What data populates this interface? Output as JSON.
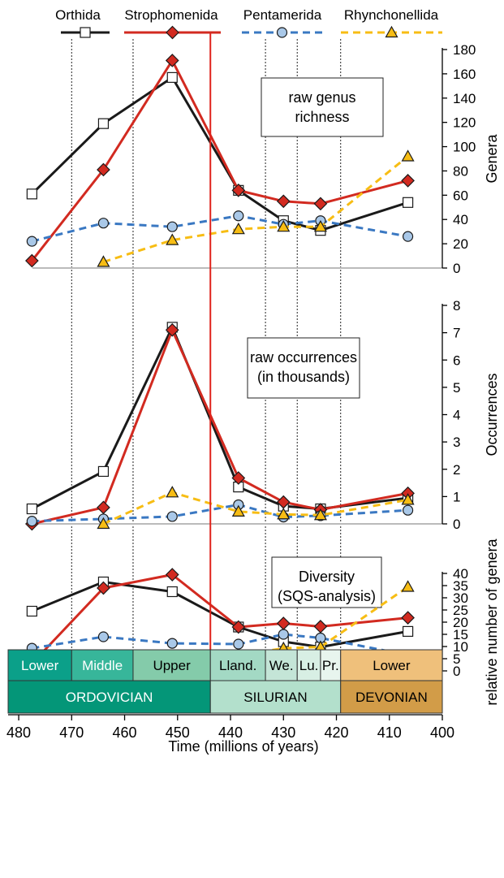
{
  "legend": [
    {
      "name": "Orthida",
      "color": "#1a1a1a",
      "dash": false,
      "marker": "square"
    },
    {
      "name": "Strophomenida",
      "color": "#d22a20",
      "dash": false,
      "marker": "diamond"
    },
    {
      "name": "Pentamerida",
      "color": "#3a78c2",
      "dash": true,
      "marker": "circle"
    },
    {
      "name": "Rhynchonellida",
      "color": "#f7bd14",
      "dash": true,
      "marker": "triangle"
    }
  ],
  "marker_fills": {
    "square": "#ffffff",
    "diamond": "#d22a20",
    "circle": "#a9c8e8",
    "triangle": "#f7bd14"
  },
  "x_axis": {
    "label": "Time (millions of years)",
    "ticks": [
      480,
      470,
      460,
      450,
      440,
      430,
      420,
      410,
      400
    ],
    "range": [
      482,
      400
    ]
  },
  "boundary_line": {
    "x": 443.8,
    "color": "#e0231b"
  },
  "guide_lines": [
    470,
    458.4,
    433.4,
    427.4,
    419.2
  ],
  "panels": [
    {
      "title": [
        "raw genus",
        "richness"
      ],
      "ylabel": "Genera",
      "ylim": [
        0,
        180
      ],
      "yticks": [
        0,
        20,
        40,
        60,
        80,
        100,
        120,
        140,
        160,
        180
      ]
    },
    {
      "title": [
        "raw occurrences",
        "(in thousands)"
      ],
      "ylabel": "Occurrences",
      "ylim": [
        0,
        8
      ],
      "yticks": [
        0,
        1,
        2,
        3,
        4,
        5,
        6,
        7,
        8
      ]
    },
    {
      "title": [
        "Diversity",
        "(SQS-analysis)"
      ],
      "ylabel": "relative number of genera",
      "ylim": [
        0,
        40
      ],
      "yticks": [
        0,
        5,
        10,
        15,
        20,
        25,
        30,
        35,
        40
      ]
    }
  ],
  "chart_data": [
    {
      "type": "line",
      "title": "raw genus richness",
      "xlabel": "Time (millions of years)",
      "ylabel": "Genera",
      "ylim": [
        0,
        180
      ],
      "series": [
        {
          "name": "Orthida",
          "x": [
            477.5,
            464,
            451,
            438.5,
            430,
            423,
            406.5
          ],
          "y": [
            61,
            119,
            157,
            64,
            39,
            31,
            54
          ]
        },
        {
          "name": "Strophomenida",
          "x": [
            477.5,
            464,
            451,
            438.5,
            430,
            423,
            406.5
          ],
          "y": [
            6,
            81,
            171,
            64,
            55,
            53,
            72
          ]
        },
        {
          "name": "Pentamerida",
          "x": [
            477.5,
            464,
            451,
            438.5,
            430,
            423,
            406.5
          ],
          "y": [
            22,
            37,
            34,
            43,
            36,
            39,
            26
          ]
        },
        {
          "name": "Rhynchonellida",
          "x": [
            464,
            451,
            438.5,
            430,
            423,
            406.5
          ],
          "y": [
            5,
            23,
            32,
            34,
            34,
            92
          ]
        }
      ]
    },
    {
      "type": "line",
      "title": "raw occurrences (in thousands)",
      "xlabel": "Time (millions of years)",
      "ylabel": "Occurrences",
      "ylim": [
        0,
        8
      ],
      "series": [
        {
          "name": "Orthida",
          "x": [
            477.5,
            464,
            451,
            438.5,
            430,
            423,
            406.5
          ],
          "y": [
            0.55,
            1.92,
            7.2,
            1.35,
            0.65,
            0.55,
            0.95
          ]
        },
        {
          "name": "Strophomenida",
          "x": [
            477.5,
            464,
            451,
            438.5,
            430,
            423,
            406.5
          ],
          "y": [
            0.0,
            0.6,
            7.1,
            1.68,
            0.8,
            0.52,
            1.12
          ]
        },
        {
          "name": "Pentamerida",
          "x": [
            477.5,
            464,
            451,
            438.5,
            430,
            423,
            406.5
          ],
          "y": [
            0.1,
            0.18,
            0.27,
            0.7,
            0.25,
            0.3,
            0.5
          ]
        },
        {
          "name": "Rhynchonellida",
          "x": [
            464,
            451,
            438.5,
            430,
            423,
            406.5
          ],
          "y": [
            0.0,
            1.15,
            0.45,
            0.35,
            0.32,
            0.88
          ]
        }
      ]
    },
    {
      "type": "line",
      "title": "Diversity (SQS-analysis)",
      "xlabel": "Time (millions of years)",
      "ylabel": "relative number of genera",
      "ylim": [
        0,
        40
      ],
      "series": [
        {
          "name": "Orthida",
          "x": [
            477.5,
            464,
            451,
            438.5,
            430,
            423,
            406.5
          ],
          "y": [
            24.5,
            36.5,
            32.5,
            18.0,
            12.0,
            9.8,
            16.2
          ]
        },
        {
          "name": "Strophomenida",
          "x": [
            477.5,
            464,
            451,
            438.5,
            430,
            423,
            406.5
          ],
          "y": [
            3.0,
            34.0,
            39.5,
            18.0,
            19.5,
            18.2,
            21.8
          ]
        },
        {
          "name": "Pentamerida",
          "x": [
            477.5,
            464,
            451,
            438.5,
            430,
            423,
            406.5
          ],
          "y": [
            9.3,
            14.0,
            11.3,
            11.0,
            15.0,
            13.5,
            6.5
          ]
        },
        {
          "name": "Rhynchonellida",
          "x": [
            464,
            451,
            438.5,
            430,
            423,
            406.5
          ],
          "y": [
            0.5,
            5.5,
            6.2,
            9.3,
            9.8,
            34.5
          ]
        }
      ]
    }
  ],
  "timescale": {
    "epochs": [
      {
        "label": "Lower",
        "from": 485.4,
        "to": 470.0,
        "color": "#0ba089",
        "text_color": "#ffffff"
      },
      {
        "label": "Middle",
        "from": 470.0,
        "to": 458.4,
        "color": "#37b69a",
        "text_color": "#ffffff"
      },
      {
        "label": "Upper",
        "from": 458.4,
        "to": 443.8,
        "color": "#84cbaa",
        "text_color": "#000000"
      },
      {
        "label": "Lland.",
        "from": 443.8,
        "to": 433.4,
        "color": "#a3d9c4",
        "text_color": "#000000"
      },
      {
        "label": "We.",
        "from": 433.4,
        "to": 427.4,
        "color": "#c4e5d7",
        "text_color": "#000000"
      },
      {
        "label": "Lu.",
        "from": 427.4,
        "to": 423.0,
        "color": "#d8efe4",
        "text_color": "#000000"
      },
      {
        "label": "Pr.",
        "from": 423.0,
        "to": 419.2,
        "color": "#e8f5ee",
        "text_color": "#000000"
      },
      {
        "label": "Lower",
        "from": 419.2,
        "to": 400,
        "color": "#efc07b",
        "text_color": "#000000"
      }
    ],
    "periods": [
      {
        "label": "ORDOVICIAN",
        "from": 485.4,
        "to": 443.8,
        "color": "#049678",
        "text_color": "#ffffff"
      },
      {
        "label": "SILURIAN",
        "from": 443.8,
        "to": 419.2,
        "color": "#b3e0cc",
        "text_color": "#000000"
      },
      {
        "label": "DEVONIAN",
        "from": 419.2,
        "to": 400,
        "color": "#d29c48",
        "text_color": "#000000"
      }
    ]
  }
}
